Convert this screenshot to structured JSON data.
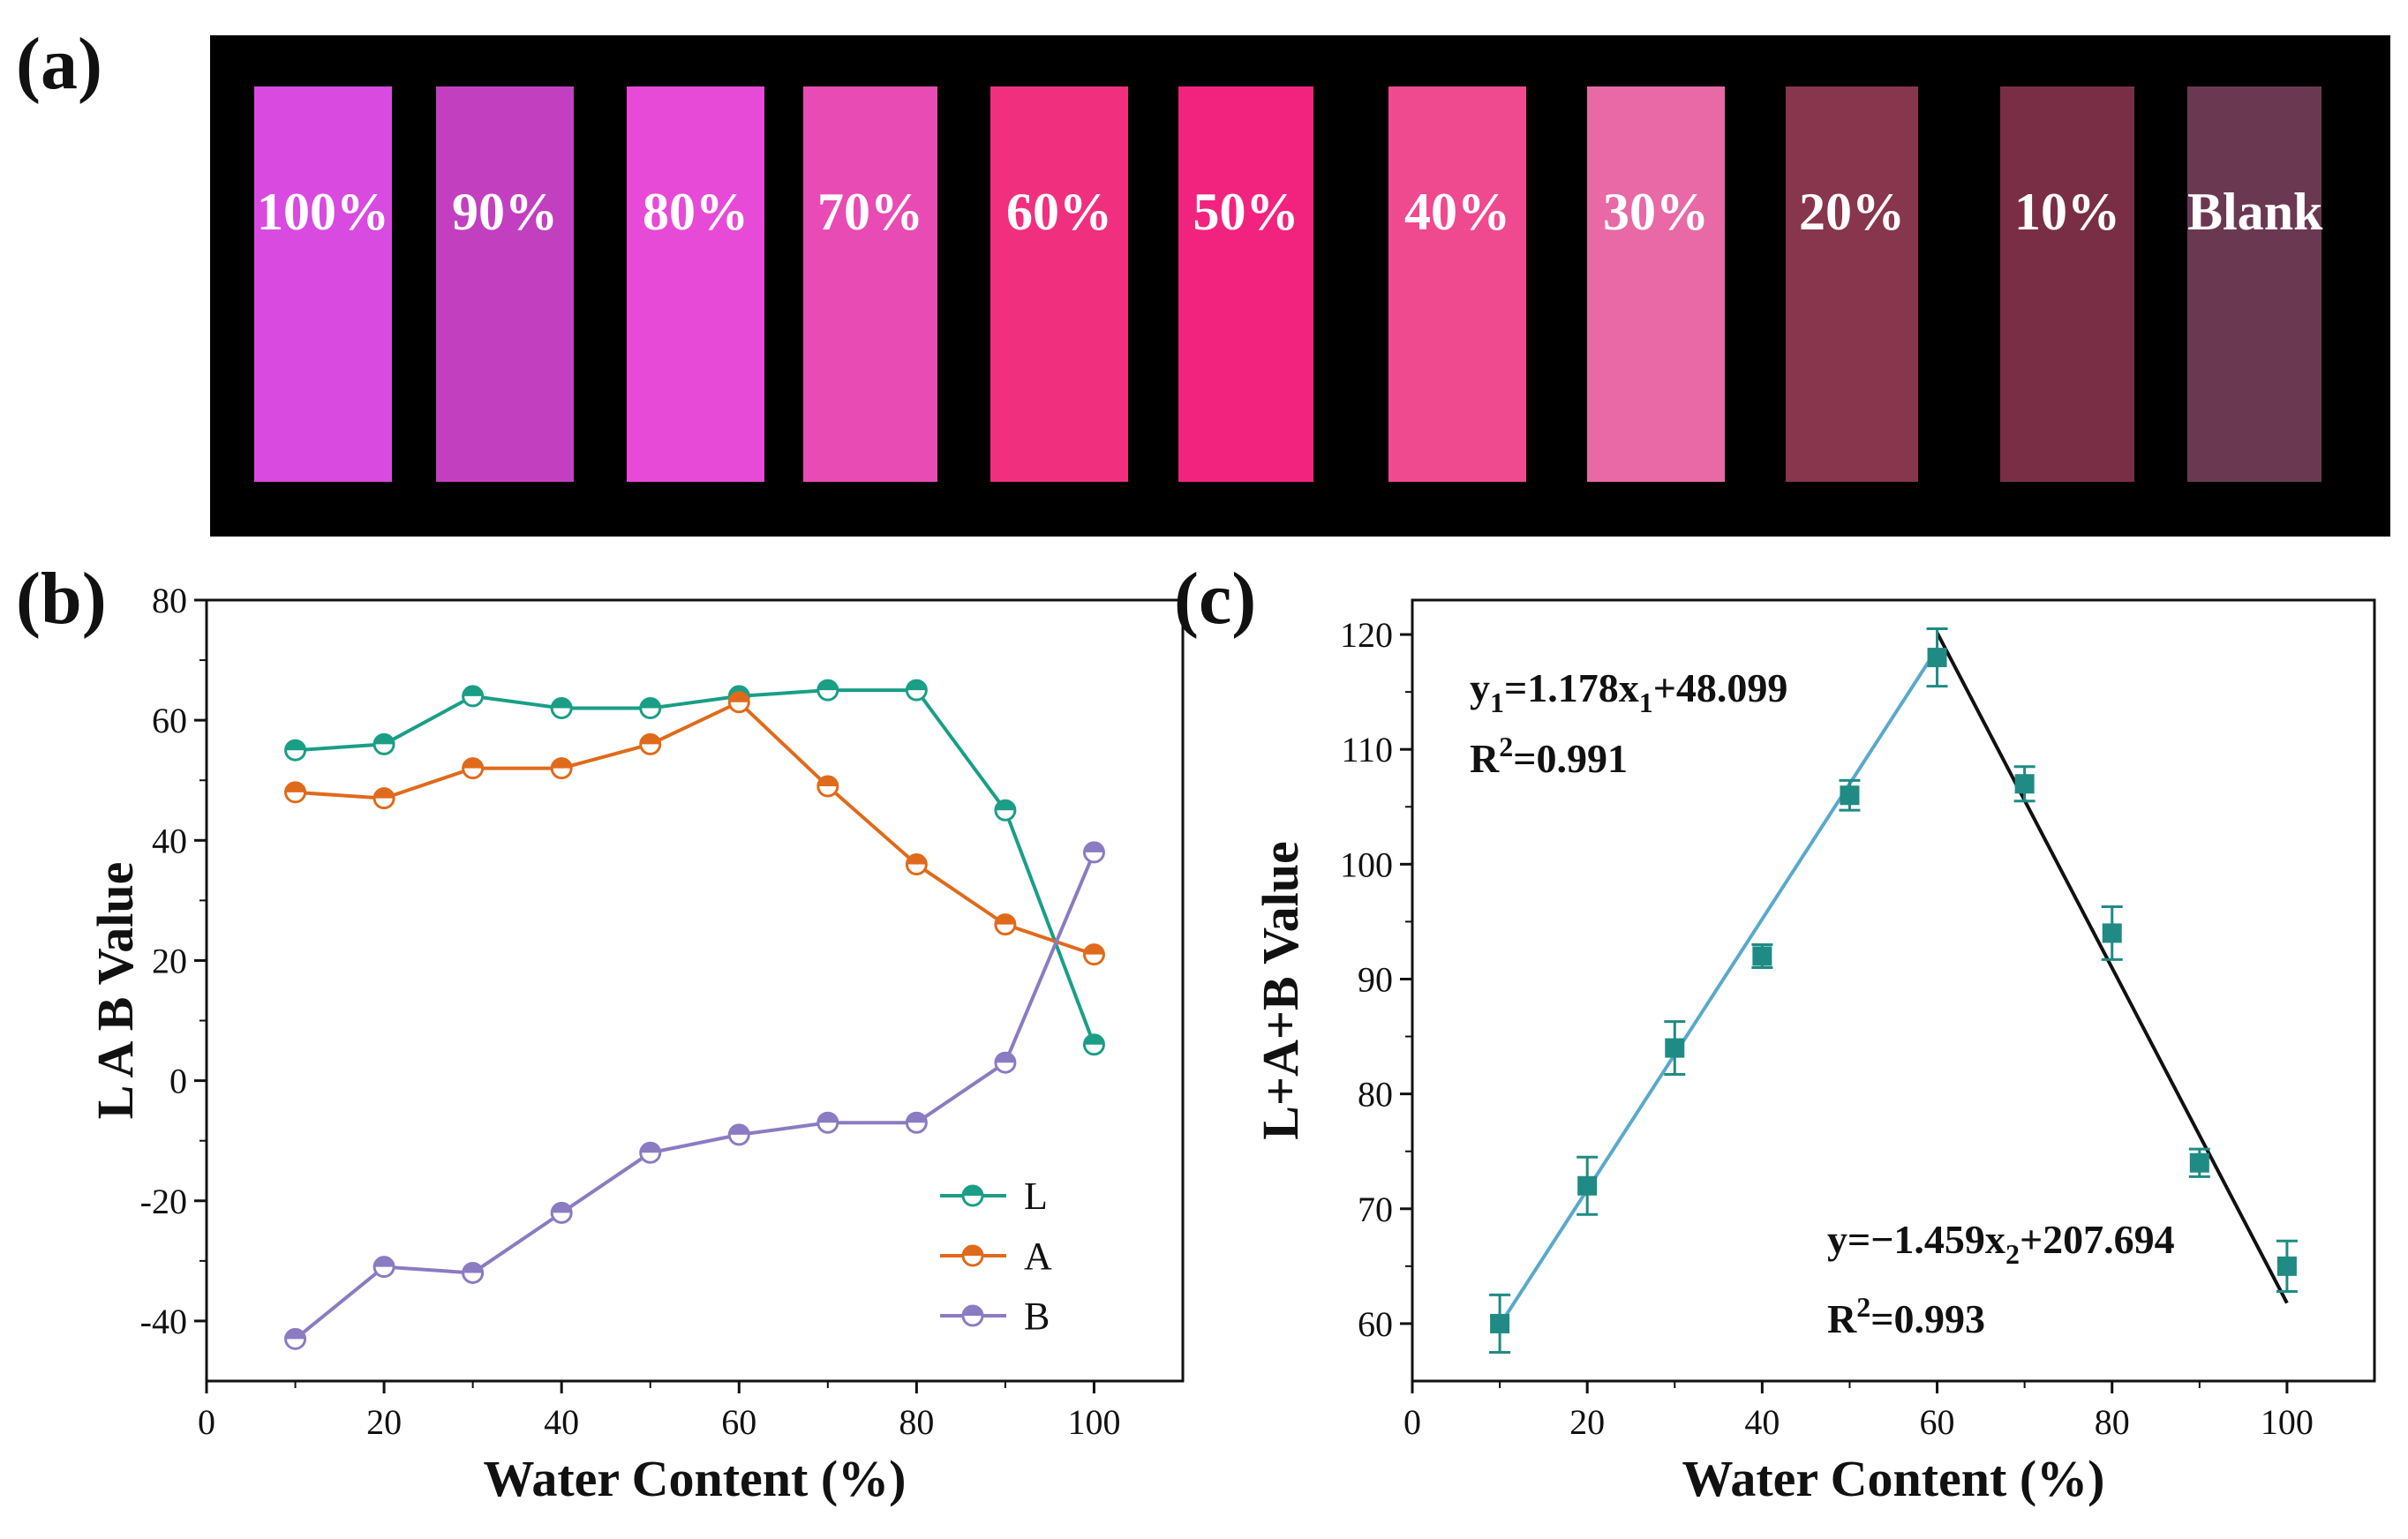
{
  "panels": {
    "a": "(a)",
    "b": "(b)",
    "c": "(c)"
  },
  "strips": [
    {
      "label": "100%",
      "color": "#d84ae0"
    },
    {
      "label": "90%",
      "color": "#c23fc0"
    },
    {
      "label": "80%",
      "color": "#e84ad8"
    },
    {
      "label": "70%",
      "color": "#e94bb4"
    },
    {
      "label": "60%",
      "color": "#f0307f"
    },
    {
      "label": "50%",
      "color": "#f2237f"
    },
    {
      "label": "40%",
      "color": "#ef4a8f"
    },
    {
      "label": "30%",
      "color": "#e869a6"
    },
    {
      "label": "20%",
      "color": "#88354e"
    },
    {
      "label": "10%",
      "color": "#7a2e46"
    },
    {
      "label": "Blank",
      "color": "#6b3852"
    }
  ],
  "chart_data": [
    {
      "type": "line",
      "xlabel": "Water Content (%)",
      "ylabel": "L A B Value",
      "xlim": [
        0,
        110
      ],
      "ylim": [
        -50,
        80
      ],
      "xticks": [
        0,
        20,
        40,
        60,
        80,
        100
      ],
      "yticks": [
        -40,
        -20,
        0,
        20,
        40,
        60,
        80
      ],
      "x": [
        10,
        20,
        30,
        40,
        50,
        60,
        70,
        80,
        90,
        100
      ],
      "legend_position": "bottom-right",
      "series": [
        {
          "name": "L",
          "color": "#1a9e86",
          "values": [
            55,
            56,
            64,
            62,
            62,
            64,
            65,
            65,
            45,
            6
          ]
        },
        {
          "name": "A",
          "color": "#e06a1b",
          "values": [
            48,
            47,
            52,
            52,
            56,
            63,
            49,
            36,
            26,
            21
          ]
        },
        {
          "name": "B",
          "color": "#8b7bc2",
          "values": [
            -43,
            -31,
            -32,
            -22,
            -12,
            -9,
            -7,
            -7,
            3,
            38
          ]
        }
      ]
    },
    {
      "type": "scatter",
      "xlabel": "Water Content (%)",
      "ylabel": "L+A+B Value",
      "xlim": [
        0,
        110
      ],
      "ylim": [
        55,
        123
      ],
      "xticks": [
        0,
        20,
        40,
        60,
        80,
        100
      ],
      "yticks": [
        60,
        70,
        80,
        90,
        100,
        110,
        120
      ],
      "marker_color": "#1f8b84",
      "points": [
        {
          "x": 10,
          "y": 60,
          "err": 2.5
        },
        {
          "x": 20,
          "y": 72,
          "err": 2.5
        },
        {
          "x": 30,
          "y": 84,
          "err": 2.3
        },
        {
          "x": 40,
          "y": 92,
          "err": 1.0
        },
        {
          "x": 50,
          "y": 106,
          "err": 1.3
        },
        {
          "x": 60,
          "y": 118,
          "err": 2.5
        },
        {
          "x": 70,
          "y": 107,
          "err": 1.5
        },
        {
          "x": 80,
          "y": 94,
          "err": 2.3
        },
        {
          "x": 90,
          "y": 74,
          "err": 1.2
        },
        {
          "x": 100,
          "y": 65,
          "err": 2.2
        }
      ],
      "fits": [
        {
          "slope": 1.178,
          "intercept": 48.099,
          "x_range": [
            10,
            60
          ],
          "color": "#5aa9cc",
          "equation": [
            "y",
            "1",
            "=1.178x",
            "1",
            "+48.099"
          ],
          "r2": [
            "R",
            "2",
            "=0.991"
          ]
        },
        {
          "slope": -1.459,
          "intercept": 207.694,
          "x_range": [
            60,
            100
          ],
          "color": "#111111",
          "equation": [
            "y=−1.459x",
            "2",
            "+207.694"
          ],
          "r2": [
            "R",
            "2",
            "=0.993"
          ]
        }
      ]
    }
  ]
}
